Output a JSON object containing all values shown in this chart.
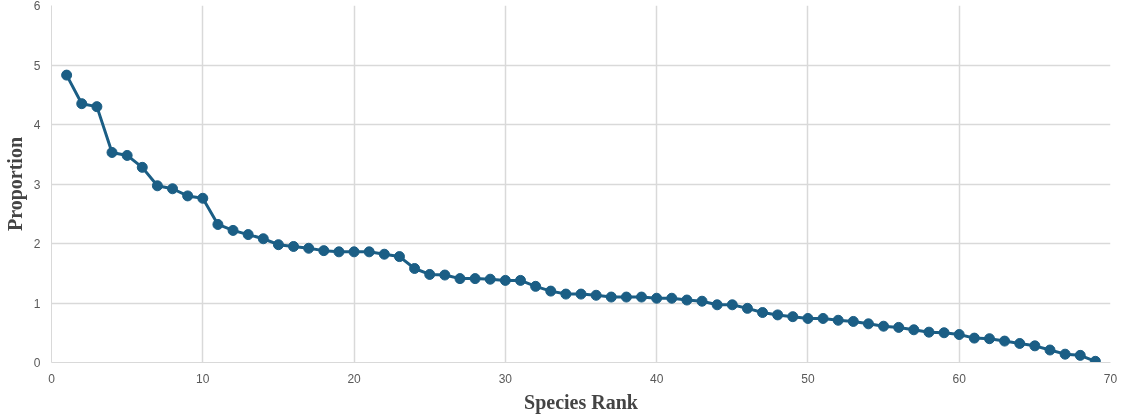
{
  "chart_data": {
    "type": "line",
    "xlabel": "Species Rank",
    "ylabel": "Proportion",
    "x": [
      1,
      2,
      3,
      4,
      5,
      6,
      7,
      8,
      9,
      10,
      11,
      12,
      13,
      14,
      15,
      16,
      17,
      18,
      19,
      20,
      21,
      22,
      23,
      24,
      25,
      26,
      27,
      28,
      29,
      30,
      31,
      32,
      33,
      34,
      35,
      36,
      37,
      38,
      39,
      40,
      41,
      42,
      43,
      44,
      45,
      46,
      47,
      48,
      49,
      50,
      51,
      52,
      53,
      54,
      55,
      56,
      57,
      58,
      59,
      60,
      61,
      62,
      63,
      64,
      65,
      66,
      67,
      68,
      69
    ],
    "series": [
      {
        "color": "#1b5e85",
        "values": [
          4.83,
          4.35,
          4.3,
          3.53,
          3.48,
          3.28,
          2.97,
          2.92,
          2.8,
          2.76,
          2.32,
          2.22,
          2.15,
          2.08,
          1.98,
          1.95,
          1.92,
          1.88,
          1.86,
          1.86,
          1.86,
          1.82,
          1.78,
          1.58,
          1.48,
          1.47,
          1.41,
          1.41,
          1.4,
          1.38,
          1.38,
          1.28,
          1.2,
          1.15,
          1.15,
          1.13,
          1.1,
          1.1,
          1.1,
          1.08,
          1.08,
          1.05,
          1.03,
          0.97,
          0.97,
          0.91,
          0.84,
          0.8,
          0.77,
          0.74,
          0.74,
          0.71,
          0.69,
          0.65,
          0.61,
          0.59,
          0.55,
          0.51,
          0.5,
          0.47,
          0.41,
          0.4,
          0.36,
          0.32,
          0.28,
          0.21,
          0.14,
          0.12,
          0.02
        ]
      }
    ],
    "xlim": [
      0,
      70
    ],
    "xticks": [
      0,
      10,
      20,
      30,
      40,
      50,
      60,
      70
    ],
    "ylim": [
      0,
      6
    ],
    "yticks": [
      0,
      1,
      2,
      3,
      4,
      5,
      6
    ],
    "grid": true,
    "marker": "circle",
    "line_style": "solid"
  }
}
